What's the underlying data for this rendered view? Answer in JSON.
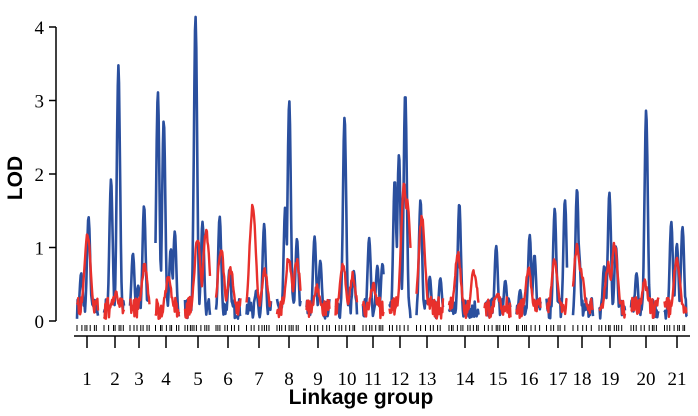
{
  "chart_data": {
    "type": "line",
    "title": "",
    "xlabel": "Linkage group",
    "ylabel": "LOD",
    "ylim": [
      0,
      4.3
    ],
    "yticks": [
      0,
      1,
      2,
      3,
      4
    ],
    "categories": [
      "1",
      "2",
      "3",
      "4",
      "5",
      "6",
      "7",
      "8",
      "9",
      "10",
      "11",
      "12",
      "13",
      "14",
      "15",
      "16",
      "17",
      "18",
      "19",
      "20",
      "21"
    ],
    "grid": false,
    "legend": "none",
    "colors": {
      "series1": "#2a4f9e",
      "series2": "#e8302c",
      "axis": "#000000"
    },
    "series": [
      {
        "color": "#2a4f9e",
        "peaks": [
          {
            "group": "1",
            "pos": 0.2,
            "lod": 0.65
          },
          {
            "group": "1",
            "pos": 0.55,
            "lod": 1.42
          },
          {
            "group": "2",
            "pos": 0.35,
            "lod": 1.93
          },
          {
            "group": "2",
            "pos": 0.72,
            "lod": 3.48
          },
          {
            "group": "3",
            "pos": 0.15,
            "lod": 0.92
          },
          {
            "group": "3",
            "pos": 0.42,
            "lod": 0.48
          },
          {
            "group": "3",
            "pos": 0.72,
            "lod": 1.57
          },
          {
            "group": "4",
            "pos": 0.1,
            "lod": 3.12
          },
          {
            "group": "4",
            "pos": 0.35,
            "lod": 2.73
          },
          {
            "group": "4",
            "pos": 0.65,
            "lod": 0.98
          },
          {
            "group": "4",
            "pos": 0.82,
            "lod": 1.22
          },
          {
            "group": "5",
            "pos": 0.42,
            "lod": 4.15
          },
          {
            "group": "5",
            "pos": 0.7,
            "lod": 1.35
          },
          {
            "group": "6",
            "pos": 0.15,
            "lod": 1.42
          },
          {
            "group": "6",
            "pos": 0.55,
            "lod": 0.7
          },
          {
            "group": "7",
            "pos": 0.4,
            "lod": 0.42
          },
          {
            "group": "7",
            "pos": 0.72,
            "lod": 1.32
          },
          {
            "group": "8",
            "pos": 0.35,
            "lod": 1.55
          },
          {
            "group": "8",
            "pos": 0.52,
            "lod": 3.0
          },
          {
            "group": "8",
            "pos": 0.85,
            "lod": 1.12
          },
          {
            "group": "9",
            "pos": 0.35,
            "lod": 1.15
          },
          {
            "group": "9",
            "pos": 0.6,
            "lod": 0.82
          },
          {
            "group": "10",
            "pos": 0.42,
            "lod": 2.78
          },
          {
            "group": "10",
            "pos": 0.85,
            "lod": 0.68
          },
          {
            "group": "11",
            "pos": 0.3,
            "lod": 1.13
          },
          {
            "group": "11",
            "pos": 0.7,
            "lod": 0.75
          },
          {
            "group": "11",
            "pos": 0.95,
            "lod": 0.78
          },
          {
            "group": "12",
            "pos": 0.25,
            "lod": 1.92
          },
          {
            "group": "12",
            "pos": 0.45,
            "lod": 2.27
          },
          {
            "group": "12",
            "pos": 0.75,
            "lod": 3.1
          },
          {
            "group": "13",
            "pos": 0.15,
            "lod": 1.65
          },
          {
            "group": "13",
            "pos": 0.5,
            "lod": 0.6
          },
          {
            "group": "13",
            "pos": 0.9,
            "lod": 0.58
          },
          {
            "group": "14",
            "pos": 0.35,
            "lod": 1.6
          },
          {
            "group": "15",
            "pos": 0.45,
            "lod": 1.02
          },
          {
            "group": "15",
            "pos": 0.8,
            "lod": 0.55
          },
          {
            "group": "16",
            "pos": 0.15,
            "lod": 0.42
          },
          {
            "group": "16",
            "pos": 0.55,
            "lod": 1.17
          },
          {
            "group": "16",
            "pos": 0.75,
            "lod": 0.9
          },
          {
            "group": "17",
            "pos": 0.4,
            "lod": 1.53
          },
          {
            "group": "17",
            "pos": 0.9,
            "lod": 1.65
          },
          {
            "group": "18",
            "pos": 0.2,
            "lod": 1.8
          },
          {
            "group": "18",
            "pos": 0.3,
            "lod": 0.93
          },
          {
            "group": "19",
            "pos": 0.2,
            "lod": 0.75
          },
          {
            "group": "19",
            "pos": 0.4,
            "lod": 1.75
          },
          {
            "group": "19",
            "pos": 0.65,
            "lod": 1.02
          },
          {
            "group": "20",
            "pos": 0.2,
            "lod": 0.65
          },
          {
            "group": "20",
            "pos": 0.55,
            "lod": 2.87
          },
          {
            "group": "21",
            "pos": 0.3,
            "lod": 1.35
          },
          {
            "group": "21",
            "pos": 0.55,
            "lod": 1.05
          },
          {
            "group": "21",
            "pos": 0.8,
            "lod": 1.28
          }
        ]
      },
      {
        "color": "#e8302c",
        "peaks": [
          {
            "group": "1",
            "pos": 0.5,
            "lod": 1.1
          },
          {
            "group": "2",
            "pos": 0.6,
            "lod": 0.3
          },
          {
            "group": "3",
            "pos": 0.75,
            "lod": 0.68
          },
          {
            "group": "4",
            "pos": 0.55,
            "lod": 0.52
          },
          {
            "group": "5",
            "pos": 0.5,
            "lod": 1.05
          },
          {
            "group": "5",
            "pos": 0.85,
            "lod": 1.15
          },
          {
            "group": "6",
            "pos": 0.2,
            "lod": 0.92
          },
          {
            "group": "6",
            "pos": 0.6,
            "lod": 0.62
          },
          {
            "group": "7",
            "pos": 0.25,
            "lod": 1.48
          },
          {
            "group": "7",
            "pos": 0.75,
            "lod": 0.62
          },
          {
            "group": "8",
            "pos": 0.5,
            "lod": 0.8
          },
          {
            "group": "8",
            "pos": 0.85,
            "lod": 0.75
          },
          {
            "group": "9",
            "pos": 0.45,
            "lod": 0.38
          },
          {
            "group": "10",
            "pos": 0.35,
            "lod": 0.68
          },
          {
            "group": "10",
            "pos": 0.8,
            "lod": 0.55
          },
          {
            "group": "11",
            "pos": 0.5,
            "lod": 0.42
          },
          {
            "group": "12",
            "pos": 0.7,
            "lod": 1.78
          },
          {
            "group": "12",
            "pos": 0.85,
            "lod": 1.55
          },
          {
            "group": "13",
            "pos": 0.2,
            "lod": 1.35
          },
          {
            "group": "14",
            "pos": 0.3,
            "lod": 0.85
          },
          {
            "group": "14",
            "pos": 0.85,
            "lod": 0.62
          },
          {
            "group": "15",
            "pos": 0.5,
            "lod": 0.3
          },
          {
            "group": "16",
            "pos": 0.5,
            "lod": 0.62
          },
          {
            "group": "17",
            "pos": 0.4,
            "lod": 0.75
          },
          {
            "group": "18",
            "pos": 0.2,
            "lod": 0.95
          },
          {
            "group": "18",
            "pos": 0.4,
            "lod": 0.62
          },
          {
            "group": "19",
            "pos": 0.35,
            "lod": 0.7
          },
          {
            "group": "19",
            "pos": 0.6,
            "lod": 0.98
          },
          {
            "group": "20",
            "pos": 0.5,
            "lod": 0.45
          },
          {
            "group": "21",
            "pos": 0.55,
            "lod": 0.8
          }
        ]
      }
    ]
  }
}
